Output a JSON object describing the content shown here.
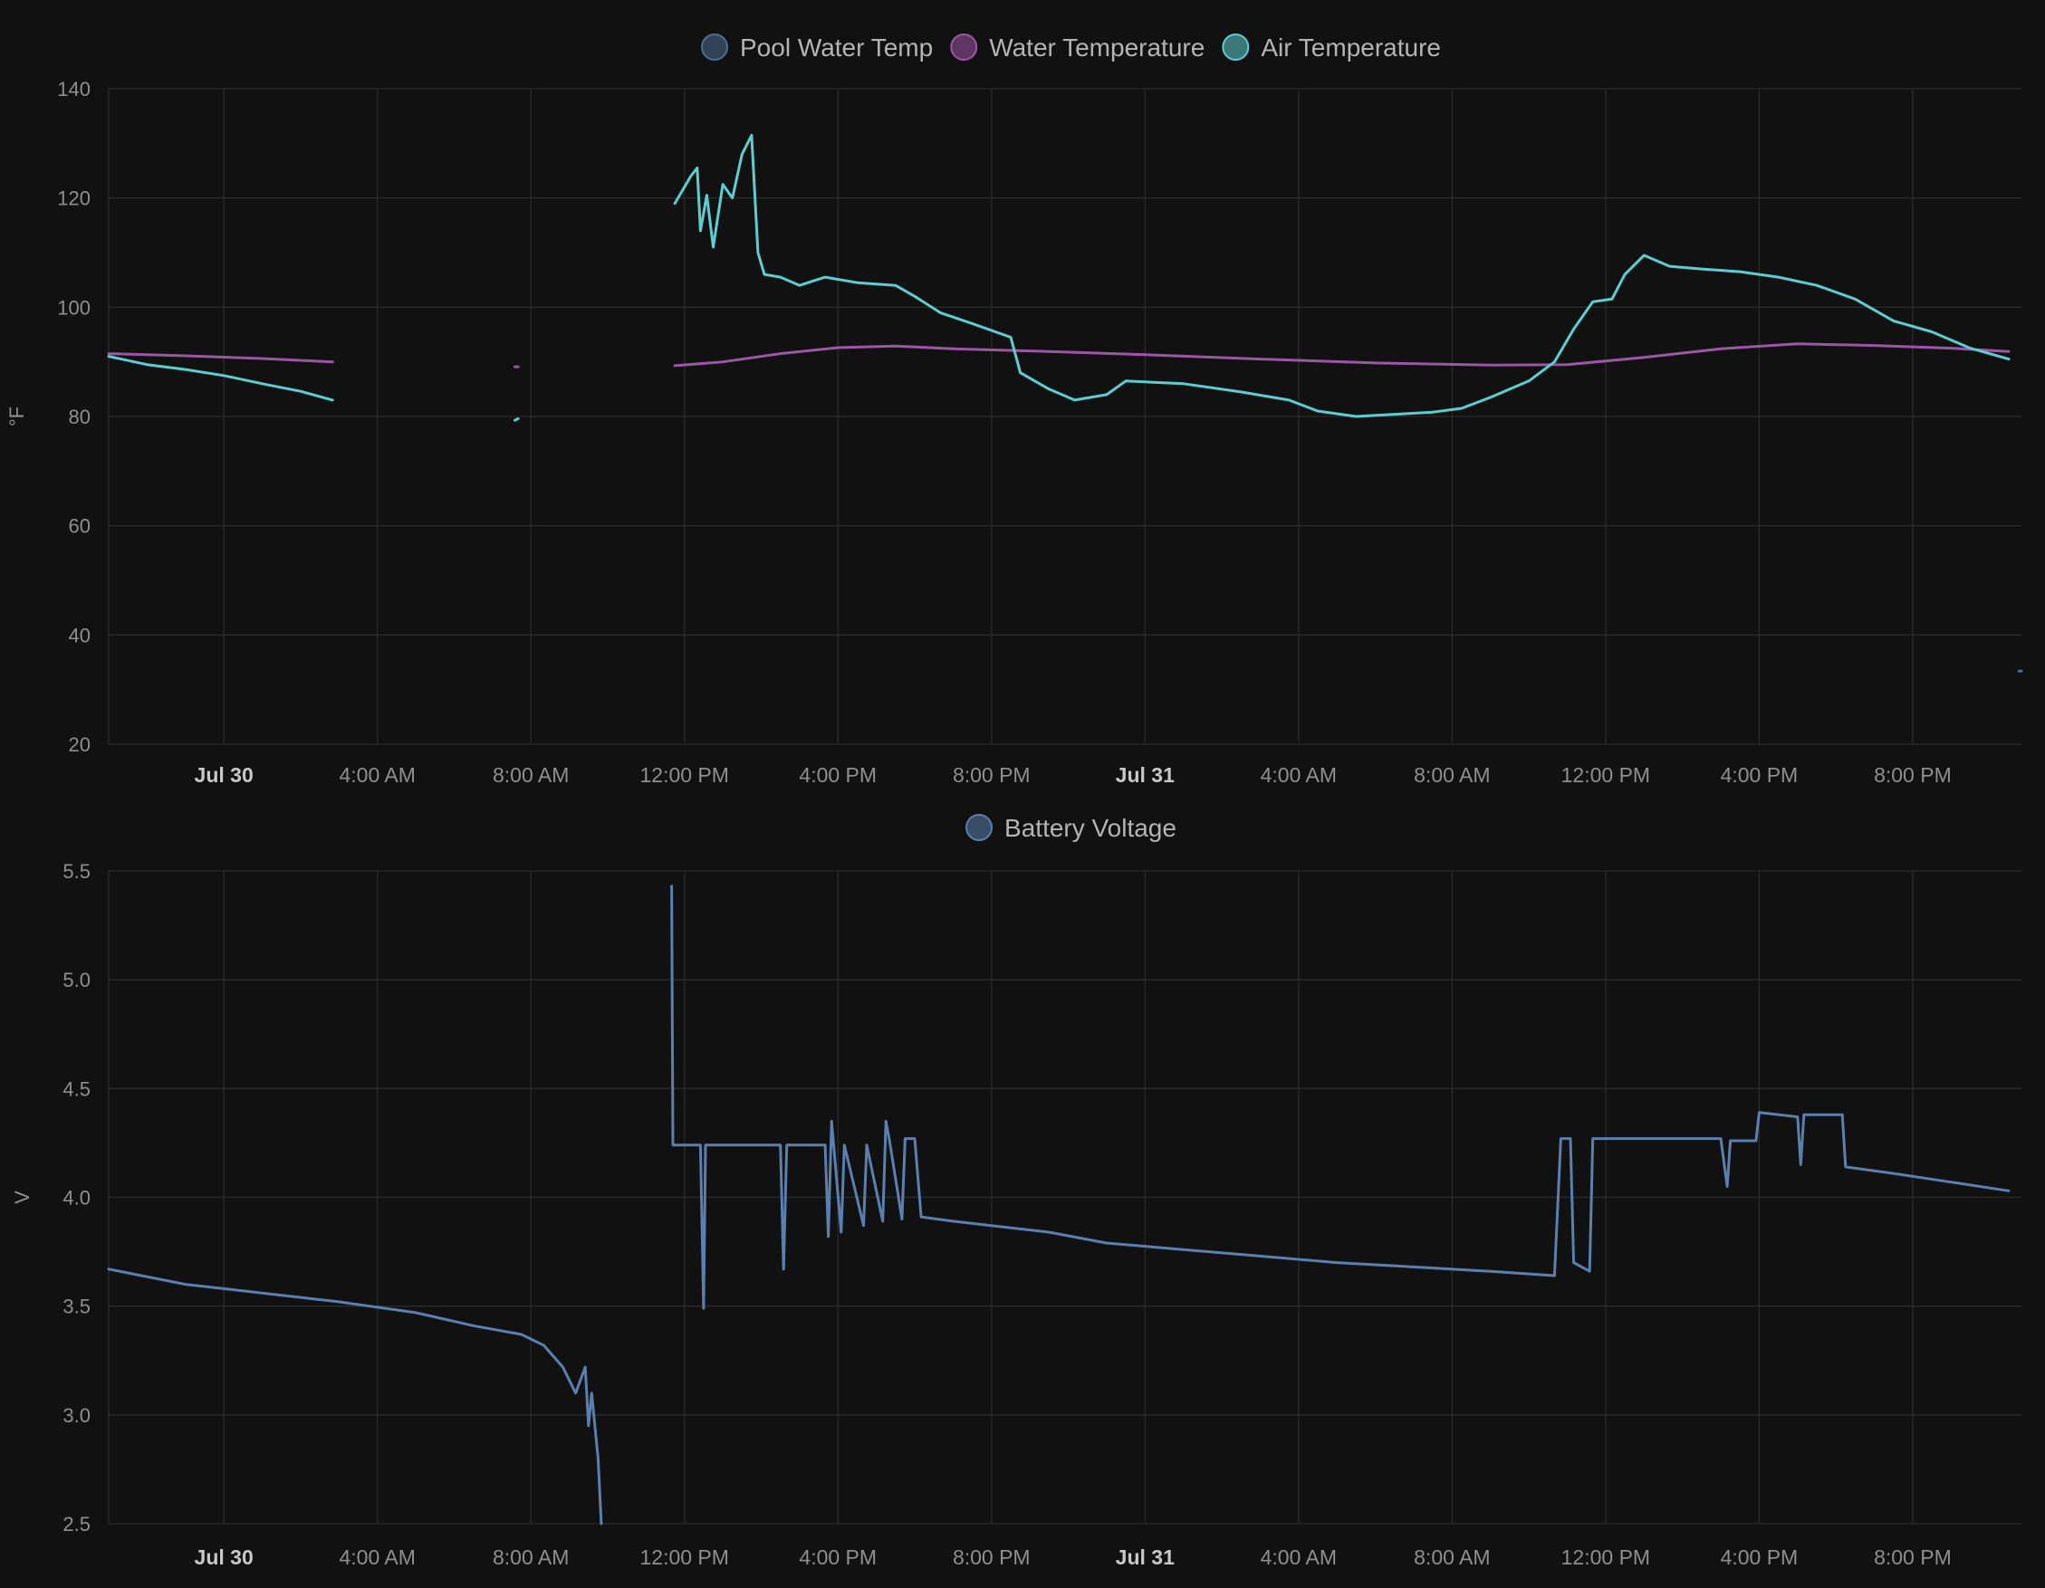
{
  "chart_data": [
    {
      "type": "line",
      "yunit": "°F",
      "ylim": [
        20,
        140
      ],
      "yticks": [
        20,
        40,
        60,
        80,
        100,
        120,
        140
      ],
      "xlim": [
        "2024-07-29T21:00",
        "2024-07-31T22:50"
      ],
      "xticks": [
        {
          "t": "2024-07-30T00:00",
          "label": "Jul 30",
          "bold": true
        },
        {
          "t": "2024-07-30T04:00",
          "label": "4:00 AM"
        },
        {
          "t": "2024-07-30T08:00",
          "label": "8:00 AM"
        },
        {
          "t": "2024-07-30T12:00",
          "label": "12:00 PM"
        },
        {
          "t": "2024-07-30T16:00",
          "label": "4:00 PM"
        },
        {
          "t": "2024-07-30T20:00",
          "label": "8:00 PM"
        },
        {
          "t": "2024-07-31T00:00",
          "label": "Jul 31",
          "bold": true
        },
        {
          "t": "2024-07-31T04:00",
          "label": "4:00 AM"
        },
        {
          "t": "2024-07-31T08:00",
          "label": "8:00 AM"
        },
        {
          "t": "2024-07-31T12:00",
          "label": "12:00 PM"
        },
        {
          "t": "2024-07-31T16:00",
          "label": "4:00 PM"
        },
        {
          "t": "2024-07-31T20:00",
          "label": "8:00 PM"
        }
      ],
      "grid": true,
      "legend_position": "top-center",
      "series": [
        {
          "name": "Pool Water Temp",
          "color": "#4f6d93",
          "segments": [
            [
              [
                "2024-07-31T22:46",
                33.4
              ],
              [
                "2024-07-31T22:50",
                33.4
              ]
            ]
          ]
        },
        {
          "name": "Water Temperature",
          "color": "#9c56a6",
          "segments": [
            [
              [
                "2024-07-29T21:00",
                91.5
              ],
              [
                "2024-07-29T23:00",
                91.1
              ],
              [
                "2024-07-30T01:00",
                90.6
              ],
              [
                "2024-07-30T02:50",
                90.0
              ]
            ],
            [
              [
                "2024-07-30T07:35",
                89.1
              ],
              [
                "2024-07-30T07:40",
                89.1
              ]
            ],
            [
              [
                "2024-07-30T11:45",
                89.3
              ],
              [
                "2024-07-30T13:00",
                90.0
              ],
              [
                "2024-07-30T14:30",
                91.5
              ],
              [
                "2024-07-30T16:00",
                92.6
              ],
              [
                "2024-07-30T17:30",
                92.9
              ],
              [
                "2024-07-30T19:00",
                92.4
              ],
              [
                "2024-07-30T21:00",
                92.0
              ],
              [
                "2024-07-31T00:00",
                91.3
              ],
              [
                "2024-07-31T03:00",
                90.5
              ],
              [
                "2024-07-31T06:00",
                89.8
              ],
              [
                "2024-07-31T09:00",
                89.4
              ],
              [
                "2024-07-31T11:00",
                89.5
              ],
              [
                "2024-07-31T13:00",
                90.8
              ],
              [
                "2024-07-31T15:00",
                92.4
              ],
              [
                "2024-07-31T17:00",
                93.3
              ],
              [
                "2024-07-31T19:00",
                93.0
              ],
              [
                "2024-07-31T21:00",
                92.5
              ],
              [
                "2024-07-31T22:30",
                91.9
              ]
            ]
          ]
        },
        {
          "name": "Air Temperature",
          "color": "#5ccdd0",
          "segments": [
            [
              [
                "2024-07-29T21:00",
                91.0
              ],
              [
                "2024-07-29T22:00",
                89.5
              ],
              [
                "2024-07-29T23:00",
                88.6
              ],
              [
                "2024-07-30T00:00",
                87.5
              ],
              [
                "2024-07-30T01:00",
                86.0
              ],
              [
                "2024-07-30T02:00",
                84.6
              ],
              [
                "2024-07-30T02:50",
                83.0
              ]
            ],
            [
              [
                "2024-07-30T07:35",
                79.3
              ],
              [
                "2024-07-30T07:40",
                79.6
              ]
            ],
            [
              [
                "2024-07-30T11:45",
                119.0
              ],
              [
                "2024-07-30T12:10",
                124.0
              ],
              [
                "2024-07-30T12:20",
                125.5
              ],
              [
                "2024-07-30T12:25",
                114.0
              ],
              [
                "2024-07-30T12:35",
                120.5
              ],
              [
                "2024-07-30T12:45",
                111.0
              ],
              [
                "2024-07-30T13:00",
                122.5
              ],
              [
                "2024-07-30T13:15",
                120.0
              ],
              [
                "2024-07-30T13:30",
                128.0
              ],
              [
                "2024-07-30T13:45",
                131.5
              ],
              [
                "2024-07-30T13:55",
                110.0
              ],
              [
                "2024-07-30T14:05",
                106.0
              ],
              [
                "2024-07-30T14:30",
                105.5
              ],
              [
                "2024-07-30T15:00",
                104.0
              ],
              [
                "2024-07-30T15:40",
                105.5
              ],
              [
                "2024-07-30T16:30",
                104.5
              ],
              [
                "2024-07-30T17:30",
                104.0
              ],
              [
                "2024-07-30T18:00",
                102.0
              ],
              [
                "2024-07-30T18:40",
                99.0
              ],
              [
                "2024-07-30T19:30",
                97.0
              ],
              [
                "2024-07-30T20:30",
                94.5
              ],
              [
                "2024-07-30T20:45",
                88.0
              ],
              [
                "2024-07-30T21:30",
                85.0
              ],
              [
                "2024-07-30T22:10",
                83.0
              ],
              [
                "2024-07-30T23:00",
                84.0
              ],
              [
                "2024-07-30T23:30",
                86.5
              ],
              [
                "2024-07-31T01:00",
                86.0
              ],
              [
                "2024-07-31T02:30",
                84.5
              ],
              [
                "2024-07-31T03:45",
                83.0
              ],
              [
                "2024-07-31T04:30",
                81.0
              ],
              [
                "2024-07-31T05:30",
                80.0
              ],
              [
                "2024-07-31T06:30",
                80.4
              ],
              [
                "2024-07-31T07:30",
                80.8
              ],
              [
                "2024-07-31T08:15",
                81.5
              ],
              [
                "2024-07-31T09:00",
                83.5
              ],
              [
                "2024-07-31T10:00",
                86.5
              ],
              [
                "2024-07-31T10:40",
                90.0
              ],
              [
                "2024-07-31T11:10",
                96.0
              ],
              [
                "2024-07-31T11:40",
                101.0
              ],
              [
                "2024-07-31T12:10",
                101.5
              ],
              [
                "2024-07-31T12:30",
                106.0
              ],
              [
                "2024-07-31T13:00",
                109.5
              ],
              [
                "2024-07-31T13:40",
                107.5
              ],
              [
                "2024-07-31T14:30",
                107.0
              ],
              [
                "2024-07-31T15:30",
                106.5
              ],
              [
                "2024-07-31T16:30",
                105.5
              ],
              [
                "2024-07-31T17:30",
                104.0
              ],
              [
                "2024-07-31T18:30",
                101.5
              ],
              [
                "2024-07-31T19:30",
                97.5
              ],
              [
                "2024-07-31T20:30",
                95.5
              ],
              [
                "2024-07-31T21:30",
                92.5
              ],
              [
                "2024-07-31T22:30",
                90.5
              ]
            ]
          ]
        }
      ]
    },
    {
      "type": "line",
      "yunit": "V",
      "ylim": [
        2.5,
        5.5
      ],
      "yticks": [
        "2.5",
        "3.0",
        "3.5",
        "4.0",
        "4.5",
        "5.0",
        "5.5"
      ],
      "xlim": [
        "2024-07-29T21:00",
        "2024-07-31T22:50"
      ],
      "xticks": [
        {
          "t": "2024-07-30T00:00",
          "label": "Jul 30",
          "bold": true
        },
        {
          "t": "2024-07-30T04:00",
          "label": "4:00 AM"
        },
        {
          "t": "2024-07-30T08:00",
          "label": "8:00 AM"
        },
        {
          "t": "2024-07-30T12:00",
          "label": "12:00 PM"
        },
        {
          "t": "2024-07-30T16:00",
          "label": "4:00 PM"
        },
        {
          "t": "2024-07-30T20:00",
          "label": "8:00 PM"
        },
        {
          "t": "2024-07-31T00:00",
          "label": "Jul 31",
          "bold": true
        },
        {
          "t": "2024-07-31T04:00",
          "label": "4:00 AM"
        },
        {
          "t": "2024-07-31T08:00",
          "label": "8:00 AM"
        },
        {
          "t": "2024-07-31T12:00",
          "label": "12:00 PM"
        },
        {
          "t": "2024-07-31T16:00",
          "label": "4:00 PM"
        },
        {
          "t": "2024-07-31T20:00",
          "label": "8:00 PM"
        }
      ],
      "grid": true,
      "legend_position": "top-center",
      "series": [
        {
          "name": "Battery Voltage",
          "color": "#5b7fae",
          "segments": [
            [
              [
                "2024-07-29T21:00",
                3.67
              ],
              [
                "2024-07-29T23:00",
                3.6
              ],
              [
                "2024-07-30T01:00",
                3.56
              ],
              [
                "2024-07-30T03:00",
                3.52
              ],
              [
                "2024-07-30T05:00",
                3.47
              ],
              [
                "2024-07-30T06:30",
                3.41
              ],
              [
                "2024-07-30T07:45",
                3.37
              ],
              [
                "2024-07-30T08:20",
                3.32
              ],
              [
                "2024-07-30T08:50",
                3.22
              ],
              [
                "2024-07-30T09:10",
                3.1
              ],
              [
                "2024-07-30T09:25",
                3.22
              ],
              [
                "2024-07-30T09:30",
                2.95
              ],
              [
                "2024-07-30T09:35",
                3.1
              ],
              [
                "2024-07-30T09:45",
                2.8
              ],
              [
                "2024-07-30T09:50",
                2.5
              ]
            ],
            [
              [
                "2024-07-30T11:40",
                5.43
              ],
              [
                "2024-07-30T11:42",
                4.24
              ],
              [
                "2024-07-30T12:25",
                4.24
              ],
              [
                "2024-07-30T12:30",
                3.49
              ],
              [
                "2024-07-30T12:33",
                4.24
              ],
              [
                "2024-07-30T14:30",
                4.24
              ],
              [
                "2024-07-30T14:35",
                3.67
              ],
              [
                "2024-07-30T14:40",
                4.24
              ],
              [
                "2024-07-30T15:40",
                4.24
              ],
              [
                "2024-07-30T15:45",
                3.82
              ],
              [
                "2024-07-30T15:50",
                4.35
              ],
              [
                "2024-07-30T16:05",
                3.84
              ],
              [
                "2024-07-30T16:10",
                4.24
              ],
              [
                "2024-07-30T16:40",
                3.87
              ],
              [
                "2024-07-30T16:45",
                4.24
              ],
              [
                "2024-07-30T17:10",
                3.89
              ],
              [
                "2024-07-30T17:15",
                4.35
              ],
              [
                "2024-07-30T17:20",
                4.27
              ],
              [
                "2024-07-30T17:40",
                3.9
              ],
              [
                "2024-07-30T17:45",
                4.27
              ],
              [
                "2024-07-30T18:00",
                4.27
              ],
              [
                "2024-07-30T18:10",
                3.91
              ],
              [
                "2024-07-30T19:00",
                3.89
              ],
              [
                "2024-07-30T20:00",
                3.87
              ],
              [
                "2024-07-30T21:30",
                3.84
              ],
              [
                "2024-07-30T23:00",
                3.79
              ],
              [
                "2024-07-31T01:00",
                3.76
              ],
              [
                "2024-07-31T03:00",
                3.73
              ],
              [
                "2024-07-31T05:00",
                3.7
              ],
              [
                "2024-07-31T07:00",
                3.68
              ],
              [
                "2024-07-31T09:00",
                3.66
              ],
              [
                "2024-07-31T10:40",
                3.64
              ],
              [
                "2024-07-31T10:50",
                4.27
              ],
              [
                "2024-07-31T11:05",
                4.27
              ],
              [
                "2024-07-31T11:10",
                3.7
              ],
              [
                "2024-07-31T11:35",
                3.66
              ],
              [
                "2024-07-31T11:40",
                4.27
              ],
              [
                "2024-07-31T15:00",
                4.27
              ],
              [
                "2024-07-31T15:10",
                4.05
              ],
              [
                "2024-07-31T15:15",
                4.26
              ],
              [
                "2024-07-31T15:55",
                4.26
              ],
              [
                "2024-07-31T16:00",
                4.39
              ],
              [
                "2024-07-31T17:00",
                4.37
              ],
              [
                "2024-07-31T17:05",
                4.15
              ],
              [
                "2024-07-31T17:10",
                4.38
              ],
              [
                "2024-07-31T18:10",
                4.38
              ],
              [
                "2024-07-31T18:15",
                4.14
              ],
              [
                "2024-07-31T19:30",
                4.11
              ],
              [
                "2024-07-31T21:00",
                4.07
              ],
              [
                "2024-07-31T22:30",
                4.03
              ]
            ]
          ]
        }
      ]
    }
  ]
}
